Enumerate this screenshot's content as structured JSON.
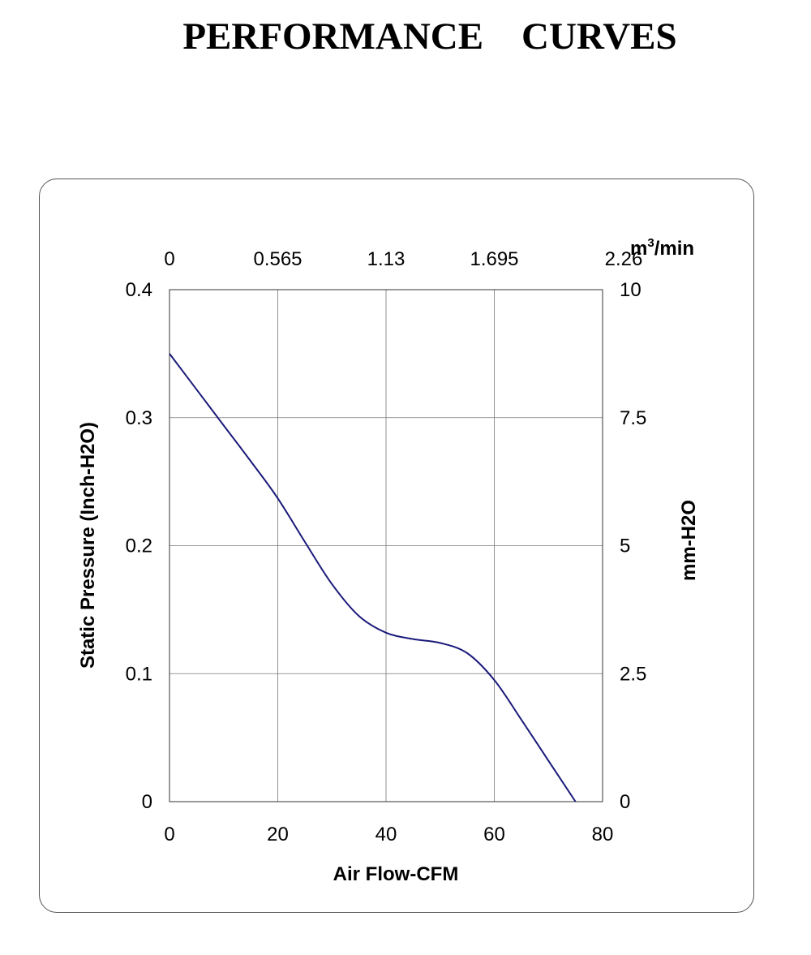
{
  "title": "PERFORMANCE    CURVES",
  "chart_data": {
    "type": "line",
    "x": [
      0,
      5,
      10,
      15,
      20,
      25,
      30,
      35,
      40,
      45,
      50,
      55,
      60,
      65,
      70,
      75
    ],
    "series": [
      {
        "values": [
          0.35,
          0.322,
          0.294,
          0.266,
          0.237,
          0.203,
          0.17,
          0.145,
          0.132,
          0.127,
          0.124,
          0.116,
          0.095,
          0.064,
          0.032,
          0.0
        ],
        "color": "#1a1a7a"
      }
    ],
    "xlabel": "Air Flow-CFM",
    "ylabel": "Static Pressure (Inch-H2O)",
    "x2label_base": "m",
    "x2label_sup": "3",
    "x2label_rest": "/min",
    "y2label": "mm-H2O",
    "xlim": [
      0,
      80
    ],
    "ylim": [
      0,
      0.4
    ],
    "x_ticks": [
      "0",
      "20",
      "40",
      "60",
      "80"
    ],
    "y_ticks": [
      "0",
      "0.1",
      "0.2",
      "0.3",
      "0.4"
    ],
    "x2_ticks": [
      "0",
      "0.565",
      "1.13",
      "1.695",
      "2.26"
    ],
    "y2_ticks": [
      "0",
      "2.5",
      "5",
      "7.5",
      "10"
    ],
    "grid": true
  }
}
